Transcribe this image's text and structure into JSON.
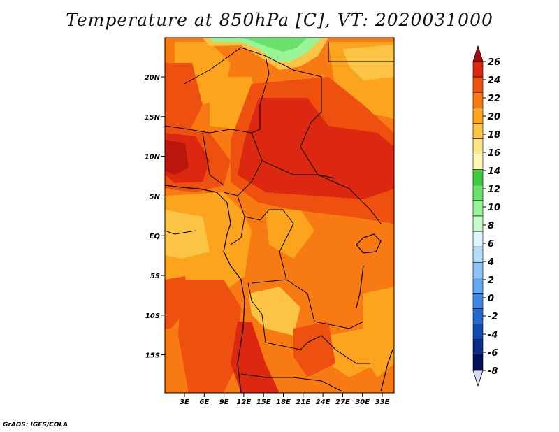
{
  "title": "Temperature at 850hPa [C], VT: 2020031000",
  "credit": "GrADS: IGES/COLA",
  "axes": {
    "lat_labels": [
      "20N",
      "15N",
      "10N",
      "5N",
      "EQ",
      "5S",
      "10S",
      "15S"
    ],
    "lon_labels": [
      "3E",
      "6E",
      "9E",
      "12E",
      "15E",
      "18E",
      "21E",
      "24E",
      "27E",
      "30E",
      "33E"
    ]
  },
  "colorbar": {
    "labels": [
      "26",
      "24",
      "22",
      "20",
      "18",
      "16",
      "14",
      "12",
      "10",
      "8",
      "6",
      "4",
      "2",
      "0",
      "-2",
      "-4",
      "-6",
      "-8"
    ],
    "colors": [
      "#a50a0a",
      "#dc2810",
      "#ee5010",
      "#f87a12",
      "#fca41e",
      "#fbc445",
      "#fde58a",
      "#fff6b6",
      "#3ecb3e",
      "#6ae26a",
      "#98f598",
      "#c8fac8",
      "#dff4ff",
      "#b5dcfa",
      "#8cc2f5",
      "#64a8ef",
      "#3f88e0",
      "#2268cc",
      "#1049b0",
      "#0a2c88",
      "#060f5a",
      "#d9d9f3"
    ]
  }
}
